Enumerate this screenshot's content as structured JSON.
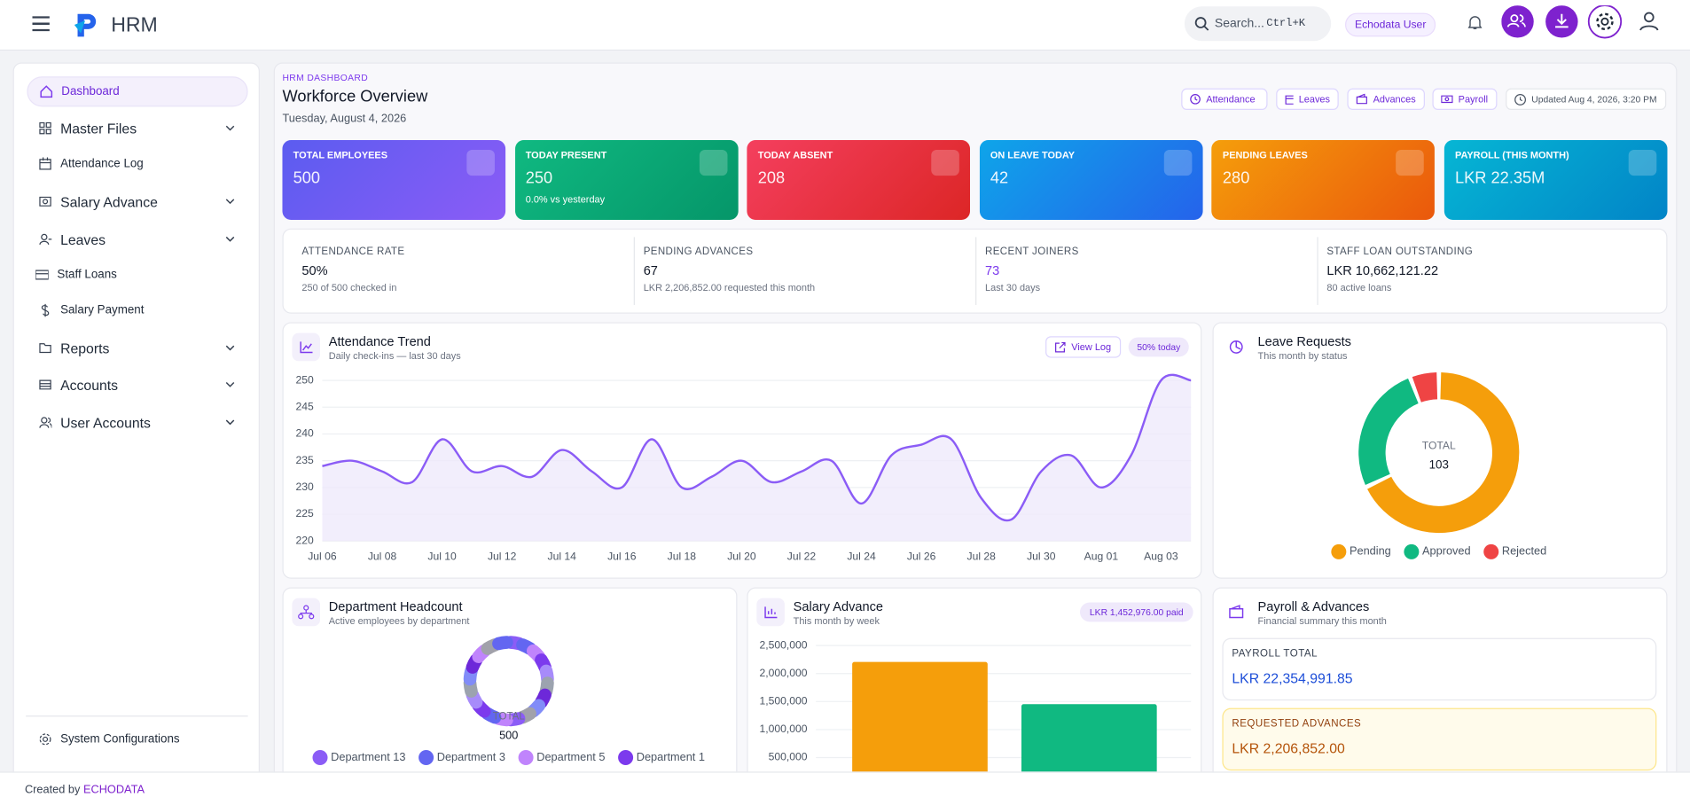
{
  "header": {
    "brand": "HRM",
    "search": "Search...",
    "shortcut": "Ctrl+K",
    "user": "Echodata User"
  },
  "sidebar": {
    "items": [
      "Dashboard",
      "Master Files",
      "Attendance Log",
      "Salary Advance",
      "Leaves",
      "Staff Loans",
      "Salary Payment",
      "Reports",
      "Accounts",
      "User Accounts"
    ],
    "bottom": "System Configurations"
  },
  "page": {
    "eyebrow": "HRM DASHBOARD",
    "title": "Workforce Overview",
    "date": "Tuesday, August 4, 2026",
    "actions": [
      "Attendance",
      "Leaves",
      "Advances",
      "Payroll"
    ],
    "updated": "Updated Aug 4, 2026, 3:20 PM"
  },
  "stat_cards": [
    {
      "label": "TOTAL EMPLOYEES",
      "value": "500"
    },
    {
      "label": "TODAY PRESENT",
      "value": "250",
      "note": "0.0% vs yesterday"
    },
    {
      "label": "TODAY ABSENT",
      "value": "208"
    },
    {
      "label": "ON LEAVE TODAY",
      "value": "42"
    },
    {
      "label": "PENDING LEAVES",
      "value": "280"
    },
    {
      "label": "PAYROLL (THIS MONTH)",
      "value": "LKR 22.35M"
    }
  ],
  "metrics": [
    {
      "label": "ATTENDANCE RATE",
      "value": "50%",
      "note": "250 of 500 checked in"
    },
    {
      "label": "PENDING ADVANCES",
      "value": "67",
      "note": "LKR 2,206,852.00 requested this month"
    },
    {
      "label": "RECENT JOINERS",
      "value": "73",
      "note": "Last 30 days"
    },
    {
      "label": "STAFF LOAN OUTSTANDING",
      "value": "LKR 10,662,121.22",
      "note": "80 active loans"
    }
  ],
  "chart_data": [
    {
      "type": "line",
      "title": "Attendance Trend",
      "subtitle": "Daily check-ins — last 30 days",
      "action": "View Log",
      "badge": "50% today",
      "categories": [
        "Jul 06",
        null,
        "Jul 08",
        null,
        "Jul 10",
        null,
        "Jul 12",
        null,
        "Jul 14",
        null,
        "Jul 16",
        null,
        "Jul 18",
        null,
        "Jul 20",
        null,
        "Jul 22",
        null,
        "Jul 24",
        null,
        "Jul 26",
        null,
        "Jul 28",
        null,
        "Jul 30",
        null,
        "Aug 01",
        null,
        "Aug 03",
        null
      ],
      "values": [
        234,
        235,
        233,
        231,
        239,
        233,
        234,
        232,
        237,
        233,
        230,
        239,
        230,
        232,
        235,
        231,
        233,
        235,
        227,
        236,
        238,
        239,
        228,
        224,
        233,
        236,
        230,
        236,
        250,
        250
      ],
      "color": "#8b5cf6",
      "ylim": [
        220,
        250
      ],
      "yticks": [
        220,
        225,
        230,
        235,
        240,
        245,
        250
      ],
      "grid": true
    },
    {
      "type": "donut",
      "title": "Leave Requests",
      "subtitle": "This month by status",
      "center_label": "TOTAL",
      "total": 103,
      "categories": [
        "Pending",
        "Approved",
        "Rejected"
      ],
      "values": [
        70,
        27,
        6
      ],
      "colors": [
        "#f59e0b",
        "#10b981",
        "#ef4444"
      ]
    },
    {
      "type": "donut",
      "title": "Department Headcount",
      "subtitle": "Active employees by department",
      "center_label": "TOTAL",
      "total": 500,
      "categories": [
        "Department 13",
        "Department 3",
        "Department 5",
        "Department 1",
        null,
        null,
        null,
        null,
        null,
        null,
        null,
        null,
        null,
        null,
        null,
        null,
        null,
        null,
        null,
        null
      ],
      "values": [
        25,
        25,
        25,
        25,
        25,
        25,
        25,
        25,
        25,
        25,
        25,
        25,
        25,
        25,
        25,
        25,
        25,
        25,
        25,
        25
      ],
      "colors": [
        "#8b5cf6",
        "#6366f1",
        "#c084fc",
        "#7c3aed",
        "#a78bfa",
        "#9ca3af",
        "#6d28d9",
        "#818cf8",
        "#a1a1aa",
        "#8b5cf6",
        "#c084fc",
        "#6366f1",
        "#7c3aed",
        "#a78bfa",
        "#9ca3af",
        "#818cf8",
        "#6d28d9",
        "#c084fc",
        "#a1a1aa",
        "#6366f1"
      ]
    },
    {
      "type": "bar",
      "title": "Salary Advance",
      "subtitle": "This month by week",
      "badge": "LKR 1,452,976.00 paid",
      "categories": [
        null,
        null
      ],
      "values": [
        2206852,
        1452976
      ],
      "colors": [
        "#f59e0b",
        "#10b981"
      ],
      "ylim": [
        0,
        2500000
      ],
      "yticks": [
        {
          "value": 500000,
          "label": "500,000"
        },
        {
          "value": 1000000,
          "label": "1,000,000"
        },
        {
          "value": 1500000,
          "label": "1,500,000"
        },
        {
          "value": 2000000,
          "label": "2,000,000"
        },
        {
          "value": 2500000,
          "label": "2,500,000"
        }
      ],
      "grid": true
    }
  ],
  "payroll": {
    "title": "Payroll & Advances",
    "subtitle": "Financial summary this month",
    "items": [
      {
        "label": "PAYROLL TOTAL",
        "value": "LKR 22,354,991.85"
      },
      {
        "label": "REQUESTED ADVANCES",
        "value": "LKR 2,206,852.00"
      }
    ]
  },
  "footer": {
    "text": "Created by",
    "brand": "ECHODATA"
  }
}
